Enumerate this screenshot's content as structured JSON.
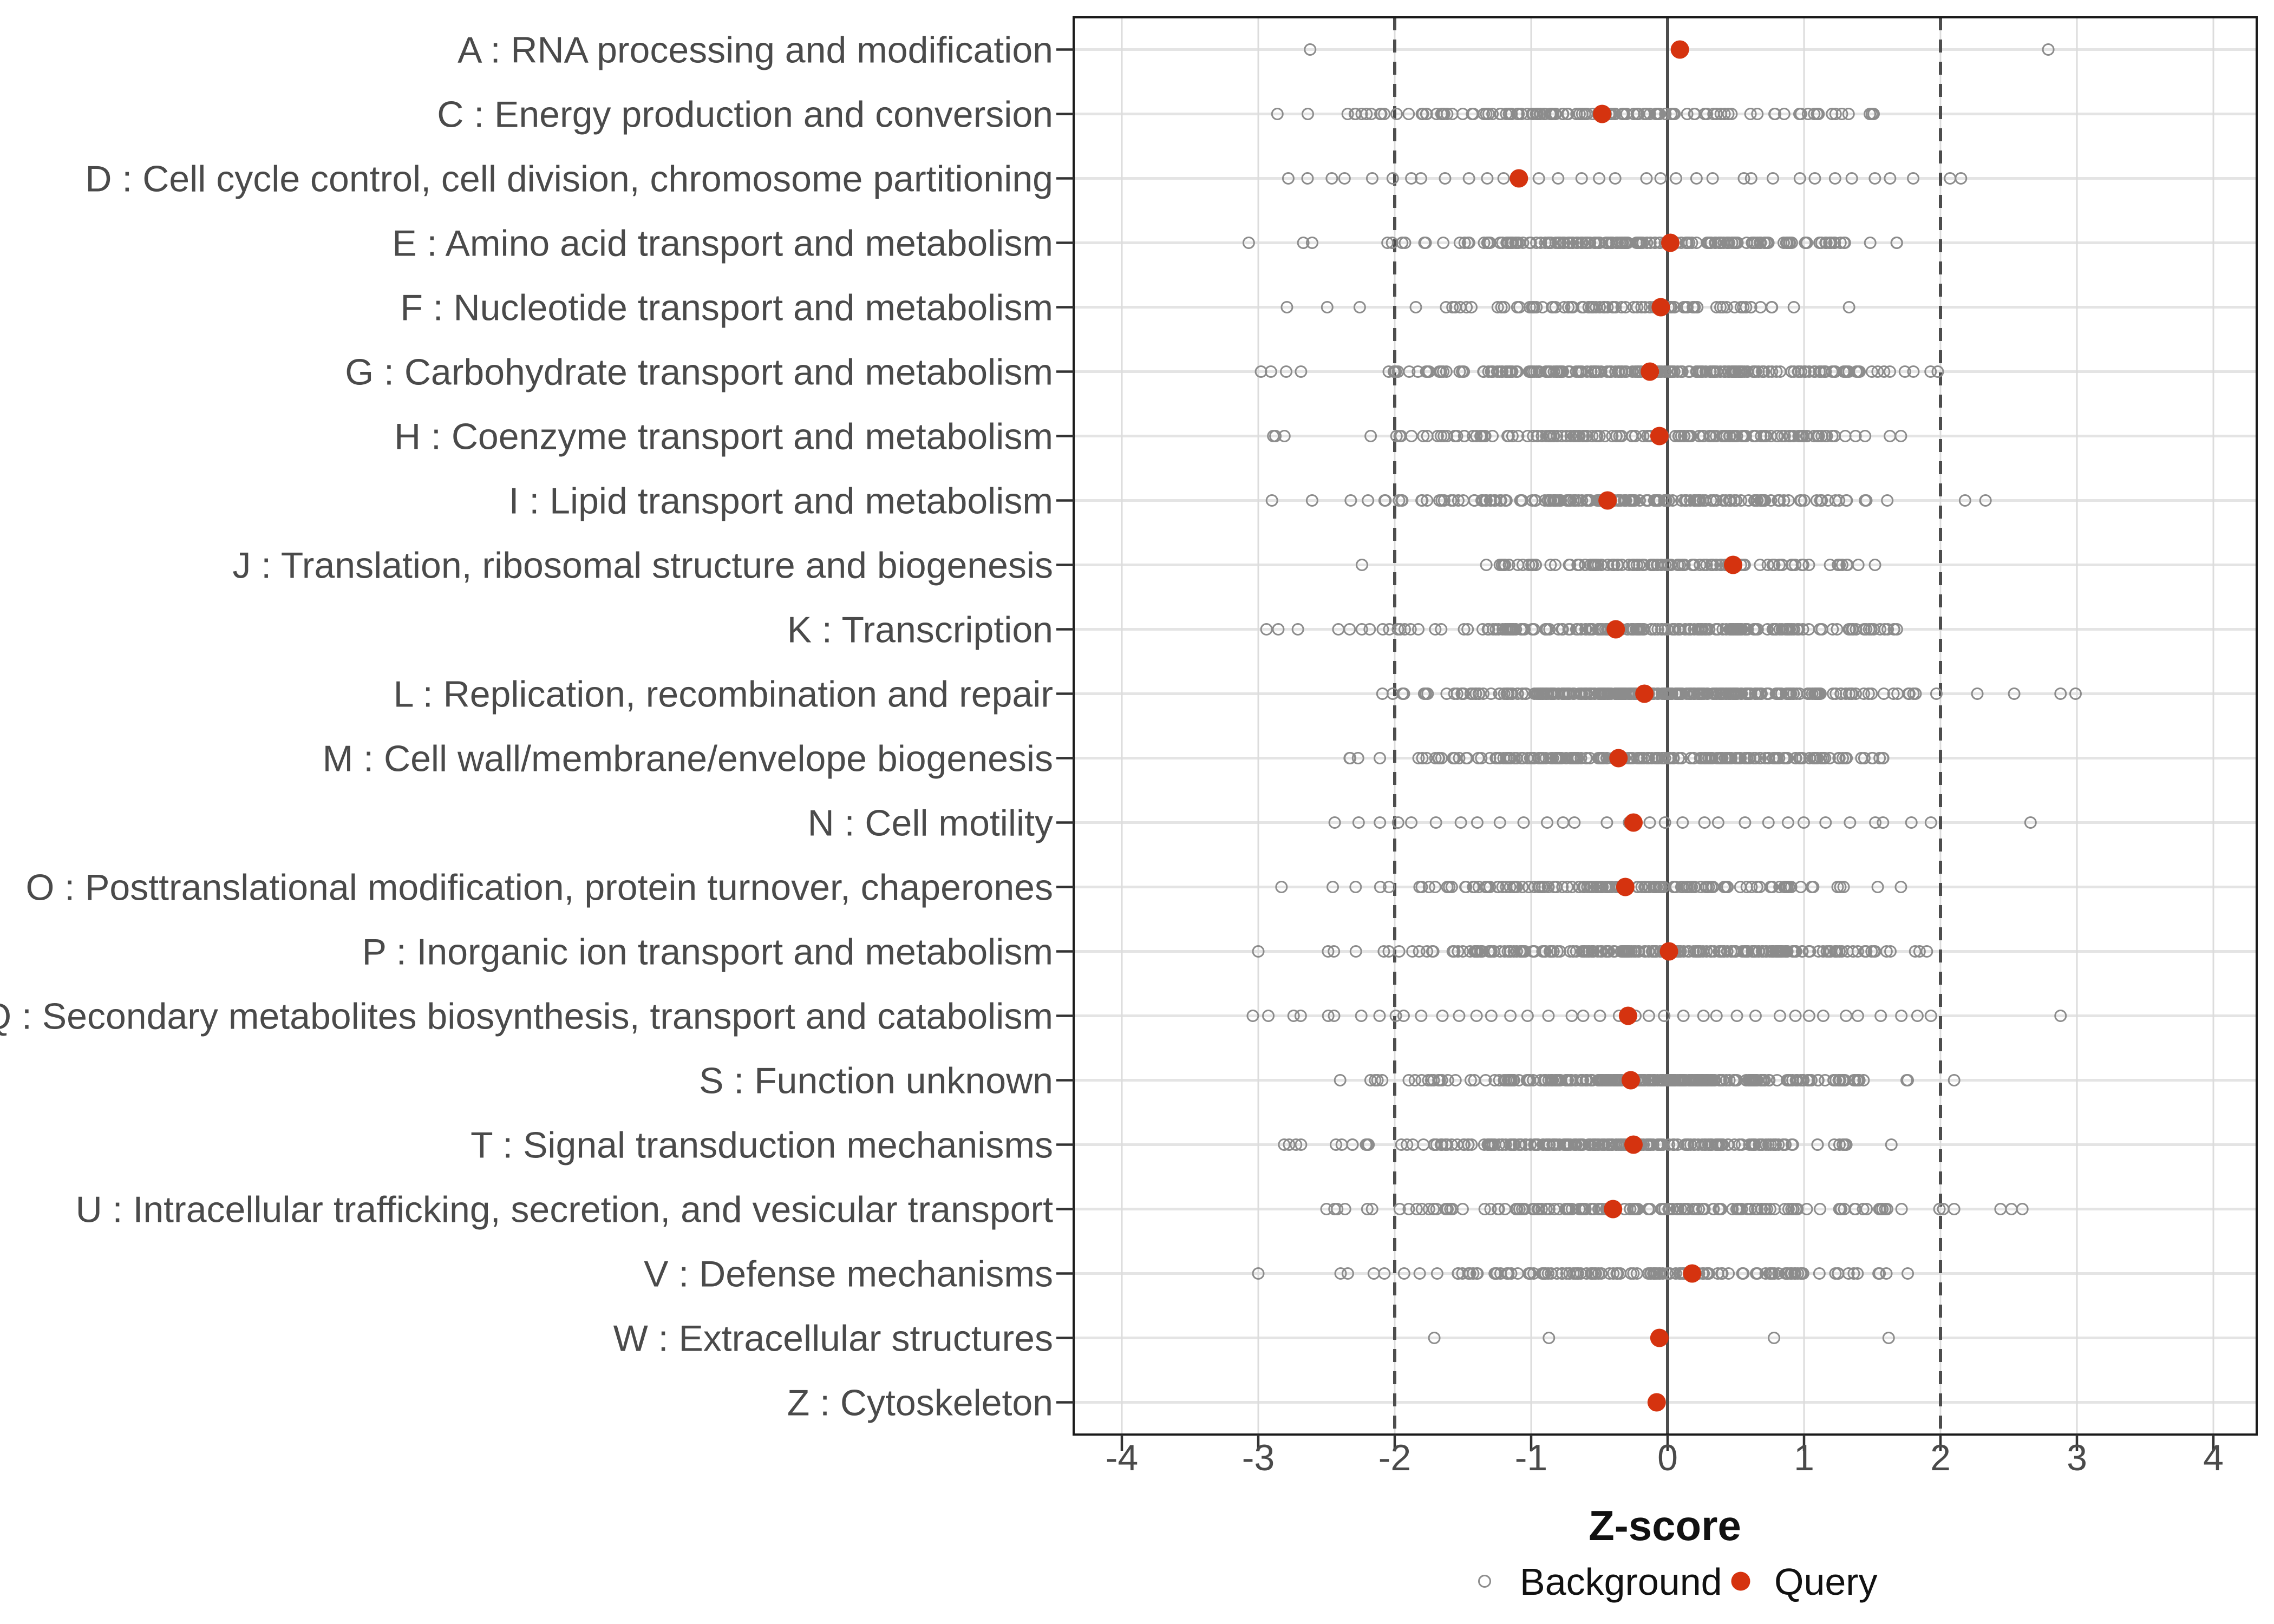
{
  "chart_data": {
    "type": "scatter",
    "title": "",
    "xlabel": "Z-score",
    "x_tick_labels": [
      "-4",
      "-3",
      "-2",
      "-1",
      "0",
      "1",
      "2",
      "3",
      "4"
    ],
    "x_tick_values": [
      -4,
      -3,
      -2,
      -1,
      0,
      1,
      2,
      3,
      4
    ],
    "xlim": [
      -4.33,
      4.33
    ],
    "grid": true,
    "legend_position": "bottom",
    "legend": {
      "background_label": "Background",
      "query_label": "Query"
    },
    "reference_lines": {
      "solid_at": [
        0
      ],
      "dashed_at": [
        -2,
        2
      ]
    },
    "rows": [
      {
        "label": "A : RNA processing and modification",
        "query_z": 0.09,
        "background": {
          "dist": "points",
          "points": [
            -2.62,
            2.79
          ]
        }
      },
      {
        "label": "C : Energy production and conversion",
        "query_z": -0.48,
        "background": {
          "dist": "normal",
          "n": 130,
          "mean": -0.4,
          "sd": 1.0,
          "min": -2.86,
          "max": 1.51,
          "outliers": []
        }
      },
      {
        "label": "D : Cell cycle control, cell division, chromosome partitioning",
        "query_z": -1.09,
        "background": {
          "dist": "uniform",
          "n": 33,
          "min": -2.78,
          "max": 1.8,
          "outliers": [
            2.07,
            2.15
          ]
        }
      },
      {
        "label": "E : Amino acid transport and metabolism",
        "query_z": 0.02,
        "background": {
          "dist": "normal",
          "n": 180,
          "mean": -0.15,
          "sd": 0.95,
          "min": -3.07,
          "max": 1.68,
          "outliers": []
        }
      },
      {
        "label": "F : Nucleotide transport and metabolism",
        "query_z": -0.05,
        "background": {
          "dist": "normal",
          "n": 85,
          "mean": -0.3,
          "sd": 0.9,
          "min": -2.79,
          "max": 1.33,
          "outliers": []
        }
      },
      {
        "label": "G : Carbohydrate transport and metabolism",
        "query_z": -0.13,
        "background": {
          "dist": "normal",
          "n": 220,
          "mean": -0.15,
          "sd": 0.95,
          "min": -2.98,
          "max": 1.98,
          "outliers": []
        }
      },
      {
        "label": "H : Coenzyme transport and metabolism",
        "query_z": -0.06,
        "background": {
          "dist": "normal",
          "n": 150,
          "mean": -0.2,
          "sd": 0.95,
          "min": -2.89,
          "max": 1.71,
          "outliers": []
        }
      },
      {
        "label": "I : Lipid transport and metabolism",
        "query_z": -0.44,
        "background": {
          "dist": "normal",
          "n": 170,
          "mean": -0.25,
          "sd": 1.0,
          "min": -2.9,
          "max": 1.61,
          "outliers": [
            2.18,
            2.33
          ]
        }
      },
      {
        "label": "J : Translation, ribosomal structure and biogenesis",
        "query_z": 0.48,
        "background": {
          "dist": "normal",
          "n": 110,
          "mean": 0.0,
          "sd": 0.85,
          "min": -2.24,
          "max": 1.52,
          "outliers": []
        }
      },
      {
        "label": "K : Transcription",
        "query_z": -0.38,
        "background": {
          "dist": "normal",
          "n": 200,
          "mean": -0.25,
          "sd": 1.0,
          "min": -2.94,
          "max": 1.68,
          "outliers": []
        }
      },
      {
        "label": "L : Replication, recombination and repair",
        "query_z": -0.17,
        "background": {
          "dist": "normal",
          "n": 260,
          "mean": -0.1,
          "sd": 0.95,
          "min": -2.09,
          "max": 1.97,
          "outliers": [
            2.27,
            2.54,
            2.88,
            2.99
          ]
        }
      },
      {
        "label": "M : Cell wall/membrane/envelope biogenesis",
        "query_z": -0.36,
        "background": {
          "dist": "normal",
          "n": 220,
          "mean": -0.2,
          "sd": 0.95,
          "min": -2.33,
          "max": 1.58,
          "outliers": []
        }
      },
      {
        "label": "N : Cell motility",
        "query_z": -0.25,
        "background": {
          "dist": "uniform",
          "n": 30,
          "min": -2.44,
          "max": 1.93,
          "outliers": [
            2.66
          ]
        }
      },
      {
        "label": "O : Posttranslational modification, protein turnover, chaperones",
        "query_z": -0.31,
        "background": {
          "dist": "normal",
          "n": 140,
          "mean": -0.35,
          "sd": 0.95,
          "min": -2.83,
          "max": 1.29,
          "outliers": [
            1.54,
            1.71
          ]
        }
      },
      {
        "label": "P : Inorganic ion transport and metabolism",
        "query_z": 0.01,
        "background": {
          "dist": "normal",
          "n": 230,
          "mean": -0.1,
          "sd": 1.0,
          "min": -3.0,
          "max": 1.9,
          "outliers": []
        }
      },
      {
        "label": "Q : Secondary metabolites biosynthesis, transport and catabolism",
        "query_z": -0.29,
        "background": {
          "dist": "uniform",
          "n": 40,
          "min": -3.04,
          "max": 1.93,
          "outliers": [
            2.88
          ]
        }
      },
      {
        "label": "S : Function unknown",
        "query_z": -0.27,
        "background": {
          "dist": "normal",
          "n": 260,
          "mean": -0.15,
          "sd": 0.95,
          "min": -2.4,
          "max": 1.76,
          "outliers": [
            2.1
          ]
        }
      },
      {
        "label": "T : Signal transduction mechanisms",
        "query_z": -0.25,
        "background": {
          "dist": "normal",
          "n": 210,
          "mean": -0.4,
          "sd": 0.9,
          "min": -2.81,
          "max": 1.31,
          "outliers": [
            1.64
          ]
        }
      },
      {
        "label": "U : Intracellular trafficking, secretion, and vesicular transport",
        "query_z": -0.4,
        "background": {
          "dist": "normal",
          "n": 150,
          "mean": -0.2,
          "sd": 1.0,
          "min": -2.5,
          "max": 2.02,
          "outliers": [
            2.1,
            2.44,
            2.52,
            2.6
          ]
        }
      },
      {
        "label": "V : Defense mechanisms",
        "query_z": 0.18,
        "background": {
          "dist": "normal",
          "n": 130,
          "mean": -0.3,
          "sd": 1.0,
          "min": -3.0,
          "max": 1.76,
          "outliers": []
        }
      },
      {
        "label": "W : Extracellular structures",
        "query_z": -0.06,
        "background": {
          "dist": "points",
          "points": [
            -1.71,
            -0.87,
            0.78,
            1.62
          ]
        }
      },
      {
        "label": "Z : Cytoskeleton",
        "query_z": -0.08,
        "background": {
          "dist": "points",
          "points": []
        }
      }
    ]
  },
  "colors": {
    "query": "#D5330F",
    "background_stroke": "#8C8C8C",
    "legend_circle_stroke": "#999999",
    "axis_text": "#4A4A4A",
    "label_text": "#111111",
    "grid_major": "#DCDCDC",
    "grid_row": "#E4E4E4",
    "ref_line": "#4D4D4D",
    "panel_border": "#1A1A1A",
    "page_bg": "#FFFFFF"
  }
}
